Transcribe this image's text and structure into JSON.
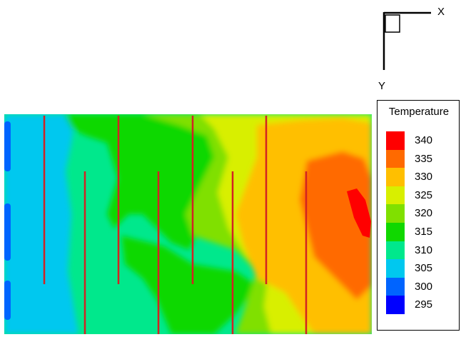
{
  "axes": {
    "x_label": "X",
    "y_label": "Y"
  },
  "legend": {
    "title": "Temperature",
    "levels": [
      {
        "value": "340",
        "color": "#ff0000"
      },
      {
        "value": "335",
        "color": "#ff6a00"
      },
      {
        "value": "330",
        "color": "#ffbf00"
      },
      {
        "value": "325",
        "color": "#d8ef00"
      },
      {
        "value": "320",
        "color": "#80e000"
      },
      {
        "value": "315",
        "color": "#10d800"
      },
      {
        "value": "310",
        "color": "#00e88c"
      },
      {
        "value": "305",
        "color": "#00c8ef"
      },
      {
        "value": "300",
        "color": "#0064ff"
      },
      {
        "value": "295",
        "color": "#0000ff"
      }
    ]
  }
}
